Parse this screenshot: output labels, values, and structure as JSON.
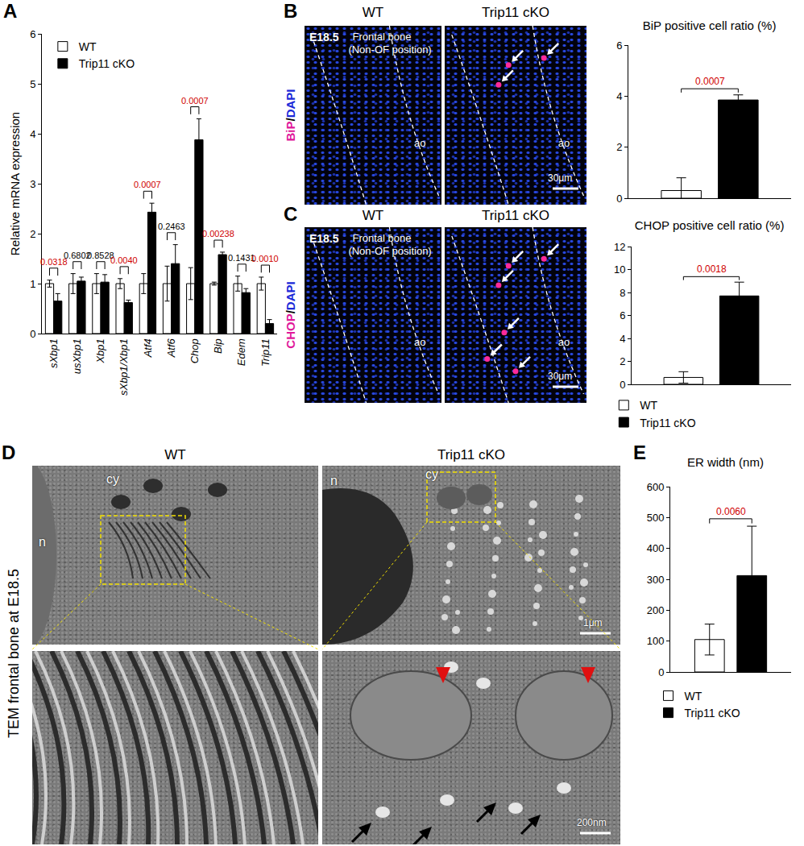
{
  "chart_data": [
    {
      "panel": "A",
      "type": "bar",
      "y_label": "Relative mRNA expression",
      "categories": [
        "sXbp1",
        "usXbp1",
        "Xbp1",
        "sXbp1/Xbp1",
        "Atf4",
        "Atf6",
        "Chop",
        "Bip",
        "Edem",
        "Trip11"
      ],
      "series": [
        {
          "name": "WT",
          "color": "#ffffff",
          "values": [
            1,
            1,
            1,
            1,
            1,
            1,
            1,
            1,
            1,
            1
          ],
          "error": [
            0.07,
            0.2,
            0.2,
            0.1,
            0.2,
            0.35,
            0.32,
            0.03,
            0.15,
            0.13
          ]
        },
        {
          "name": "Trip11 cKO",
          "color": "#000000",
          "values": [
            0.65,
            1.05,
            1.03,
            0.62,
            2.43,
            1.4,
            3.88,
            1.58,
            0.82,
            0.2
          ],
          "error": [
            0.15,
            0.08,
            0.15,
            0.05,
            0.18,
            0.38,
            0.42,
            0.05,
            0.08,
            0.08
          ]
        }
      ],
      "annotations": [
        "0.0318",
        "0.6802",
        "0.8528",
        "0.0040",
        "0.0007",
        "0.2463",
        "0.0007",
        "0.00238",
        "0.1431",
        "0.0010"
      ],
      "ylim": [
        0,
        6
      ],
      "yticks": [
        0,
        1,
        2,
        3,
        4,
        5,
        6
      ],
      "grid": false,
      "legend": "top left"
    },
    {
      "panel": "B",
      "type": "bar",
      "title": "BiP positive cell ratio (%)",
      "categories": [
        null
      ],
      "series": [
        {
          "color": "#ffffff",
          "values": [
            0.3
          ],
          "error": [
            0.5
          ]
        },
        {
          "color": "#000000",
          "values": [
            3.85
          ],
          "error": [
            0.2
          ]
        }
      ],
      "annotations": [
        "0.0007"
      ],
      "ylim": [
        0,
        6
      ],
      "yticks": [
        0,
        2,
        4,
        6
      ],
      "grid": false,
      "tick_labels": "y"
    },
    {
      "panel": "C",
      "type": "bar",
      "title": "CHOP positive cell ratio (%)",
      "categories": [
        null
      ],
      "series": [
        {
          "name": "WT",
          "color": "#ffffff",
          "values": [
            0.6
          ],
          "error": [
            0.5
          ]
        },
        {
          "name": "Trip11 cKO",
          "color": "#000000",
          "values": [
            7.7
          ],
          "error": [
            1.2
          ]
        }
      ],
      "annotations": [
        "0.0018"
      ],
      "ylim": [
        0,
        12
      ],
      "yticks": [
        0,
        2,
        4,
        6,
        8,
        10,
        12
      ],
      "grid": false,
      "tick_labels": "y",
      "legend": "bottom"
    },
    {
      "panel": "E",
      "type": "bar",
      "title": "ER width (nm)",
      "categories": [
        null
      ],
      "series": [
        {
          "name": "WT",
          "color": "#ffffff",
          "values": [
            105
          ],
          "error": [
            50
          ]
        },
        {
          "name": "Trip11 cKO",
          "color": "#000000",
          "values": [
            312
          ],
          "error": [
            160
          ]
        }
      ],
      "annotations": [
        "0.0060"
      ],
      "ylim": [
        0,
        600
      ],
      "yticks": [
        0,
        100,
        200,
        300,
        400,
        500,
        600
      ],
      "grid": false,
      "tick_labels": "y",
      "legend": "bottom"
    }
  ],
  "image_panels": {
    "B": {
      "letter": "B",
      "columns": [
        "WT",
        "Trip11 cKO"
      ],
      "stage": "E18.5",
      "region": "Frontal bone",
      "region_note": "(Non-OF position)",
      "stain": "BiP/DAPI",
      "tissue": "ao",
      "scale_bar": "30μm"
    },
    "C": {
      "letter": "C",
      "columns": [
        "WT",
        "Trip11 cKO"
      ],
      "stage": "E18.5",
      "region": "Frontal bone",
      "region_note": "(Non-OF position)",
      "stain": "CHOP/DAPI",
      "tissue": "ao",
      "scale_bar": "30μm"
    },
    "D": {
      "letter": "D",
      "side_label": "TEM frontal bone at E18.5",
      "columns": [
        "WT",
        "Trip11 cKO"
      ],
      "wt_labels": [
        "cy",
        "n"
      ],
      "cko_labels": [
        "n",
        "cy"
      ],
      "scale_top": "1μm",
      "scale_bottom": "200nm"
    }
  }
}
